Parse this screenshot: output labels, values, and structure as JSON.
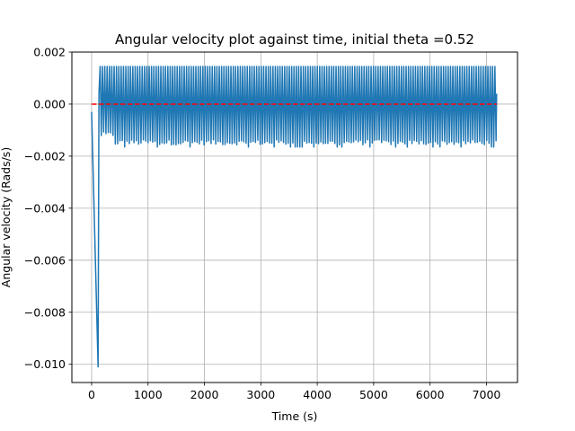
{
  "chart_data": {
    "type": "line",
    "title": "Angular velocity plot against time, initial theta =0.52",
    "xlabel": "Time (s)",
    "ylabel": "Angular velocity (Rads/s)",
    "xlim": [
      -350,
      7550
    ],
    "ylim": [
      -0.0107,
      0.002
    ],
    "xticks": [
      0,
      1000,
      2000,
      3000,
      4000,
      5000,
      6000,
      7000
    ],
    "xtick_labels": [
      "0",
      "1000",
      "2000",
      "3000",
      "4000",
      "5000",
      "6000",
      "7000"
    ],
    "yticks": [
      0.002,
      0.0,
      -0.002,
      -0.004,
      -0.006,
      -0.008,
      -0.01
    ],
    "ytick_labels": [
      "0.002",
      "0.000",
      "−0.002",
      "−0.004",
      "−0.006",
      "−0.008",
      "−0.010"
    ],
    "grid": true,
    "series": [
      {
        "style": "solid",
        "color": "#1f77b4",
        "initial_points": {
          "x": [
            0,
            115,
            130
          ],
          "y": [
            -0.0003,
            -0.0101,
            0.0004
          ]
        },
        "oscillation": {
          "x_start": 130,
          "x_end": 7180,
          "y_max": 0.00145,
          "y_min": -0.00165,
          "y_min_early": -0.00135,
          "early_until": 400,
          "final_x": 7180,
          "final_y": 0.0004
        }
      },
      {
        "style": "dashed",
        "color": "#ff0000",
        "x": [
          0,
          7180
        ],
        "y": [
          0.0,
          0.0
        ]
      }
    ]
  }
}
